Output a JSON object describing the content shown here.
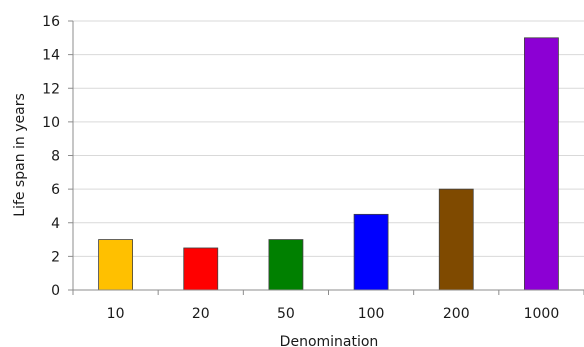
{
  "chart_data": {
    "type": "bar",
    "title": "",
    "xlabel": "Denomination",
    "ylabel": "Life span in years",
    "categories": [
      "10",
      "20",
      "50",
      "100",
      "200",
      "1000"
    ],
    "values": [
      3,
      2.5,
      3,
      4.5,
      6,
      15
    ],
    "ylim": [
      0,
      16
    ],
    "yticks": [
      0,
      2,
      4,
      6,
      8,
      10,
      12,
      14,
      16
    ],
    "grid": true,
    "legend": "none",
    "colors": [
      "#FFC000",
      "#FF0000",
      "#008000",
      "#0000FF",
      "#7F4A00",
      "#8C00D4"
    ]
  }
}
